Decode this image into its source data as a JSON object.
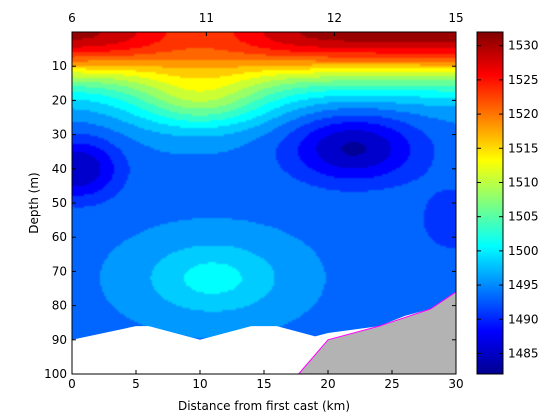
{
  "chart_data": {
    "type": "heatmap",
    "subtype": "filled-contour",
    "xlabel": "Distance from first cast (km)",
    "ylabel": "Depth (m)",
    "xlim": [
      0,
      30
    ],
    "ylim": [
      0,
      100
    ],
    "y_reversed": true,
    "x_ticks": [
      0,
      5,
      10,
      15,
      20,
      25,
      30
    ],
    "y_ticks": [
      10,
      20,
      30,
      40,
      50,
      60,
      70,
      80,
      90,
      100
    ],
    "station_ticks": [
      {
        "label": "6",
        "x": 0
      },
      {
        "label": "11",
        "x": 10.5
      },
      {
        "label": "12",
        "x": 20.5
      },
      {
        "label": "15",
        "x": 30
      }
    ],
    "colorbar": {
      "min": 1482,
      "max": 1532,
      "ticks": [
        1485,
        1490,
        1495,
        1500,
        1505,
        1510,
        1515,
        1520,
        1525,
        1530
      ],
      "colormap": "jet"
    },
    "features": {
      "surface_max": 1531,
      "cold_core_left": {
        "x": 0.5,
        "depth": 40,
        "value": 1485
      },
      "cold_core_right": {
        "x": 22,
        "depth": 34,
        "value": 1485
      },
      "warm_tongue": {
        "x": 10,
        "depth": 20,
        "value": 1516
      },
      "deep_plume": {
        "x": 11,
        "depth": 72,
        "value": 1500
      }
    },
    "bottom_line_color": "#ff00ff",
    "land_color": "#b3b3b3"
  }
}
